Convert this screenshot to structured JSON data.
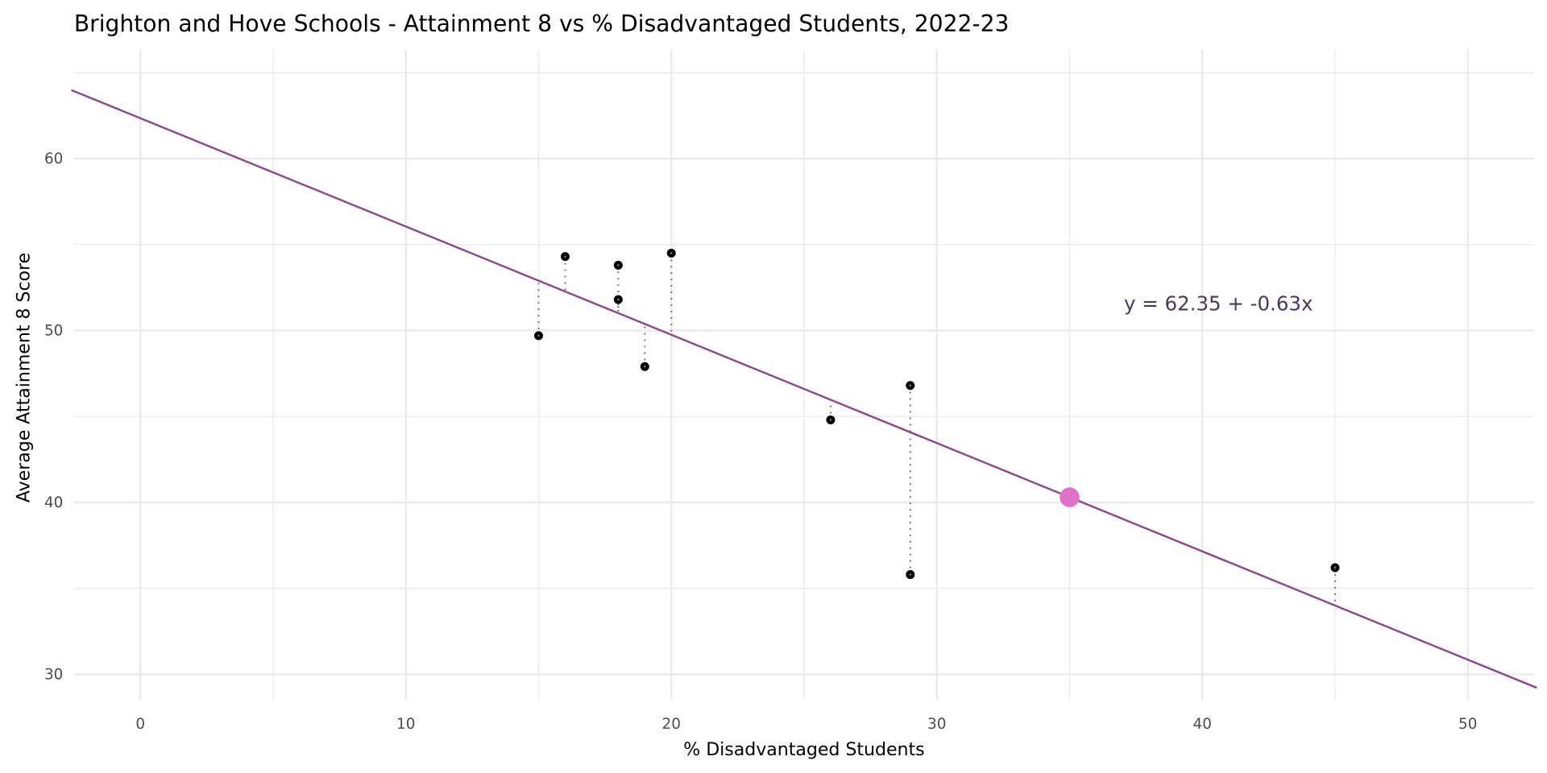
{
  "chart_data": {
    "type": "scatter",
    "title": "Brighton and Hove Schools - Attainment 8 vs % Disadvantaged Students, 2022-23",
    "xlabel": "% Disadvantaged Students",
    "ylabel": "Average Attainment 8 Score",
    "xlim": [
      -2.5,
      52.5
    ],
    "ylim": [
      28.5,
      65.5
    ],
    "xticks": [
      0,
      10,
      20,
      30,
      40,
      50
    ],
    "yticks": [
      30,
      40,
      50,
      60
    ],
    "grid": true,
    "points": [
      {
        "x": 15,
        "y": 49.7
      },
      {
        "x": 16,
        "y": 54.3
      },
      {
        "x": 18,
        "y": 53.8
      },
      {
        "x": 18,
        "y": 51.8
      },
      {
        "x": 19,
        "y": 47.9
      },
      {
        "x": 20,
        "y": 54.5
      },
      {
        "x": 26,
        "y": 44.8
      },
      {
        "x": 29,
        "y": 46.8
      },
      {
        "x": 29,
        "y": 35.8
      },
      {
        "x": 45,
        "y": 36.2
      }
    ],
    "highlight_point": {
      "x": 35,
      "y": 40.3
    },
    "regression": {
      "intercept": 62.35,
      "slope": -0.63
    },
    "annotation": "y = 62.35 + -0.63x",
    "colors": {
      "line": "#8b4a8b",
      "highlight": "#e070c8",
      "points": "#000000",
      "annotation": "#4a3a5a"
    }
  }
}
